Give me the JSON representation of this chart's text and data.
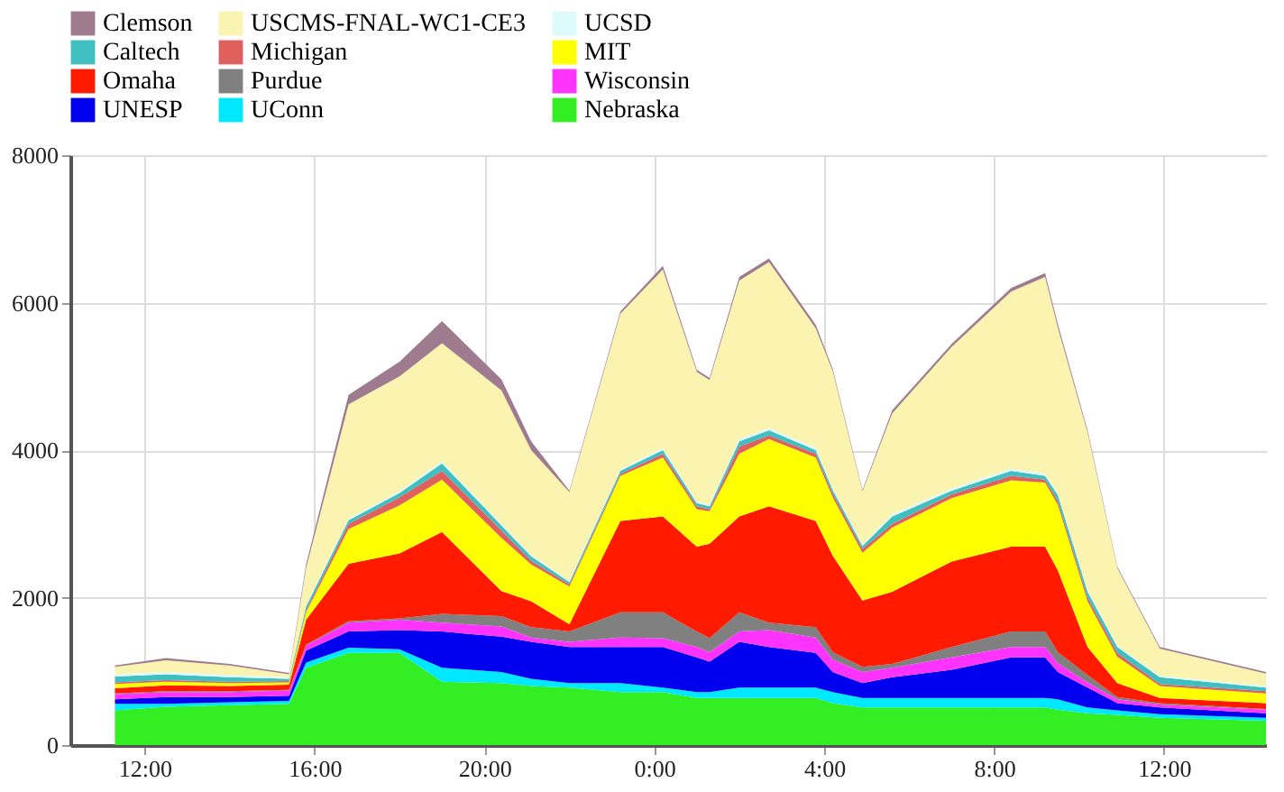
{
  "chart_data": {
    "type": "area",
    "stacked": true,
    "grid": true,
    "legend": "top",
    "x": [
      "2000-01-01T11:18",
      "2000-01-01T12:30",
      "2000-01-01T14:00",
      "2000-01-01T15:24",
      "2000-01-01T15:48",
      "2000-01-01T16:48",
      "2000-01-01T18:00",
      "2000-01-01T19:00",
      "2000-01-01T20:24",
      "2000-01-01T21:06",
      "2000-01-01T22:00",
      "2000-01-01T23:12",
      "2000-01-02T00:12",
      "2000-01-02T01:00",
      "2000-01-02T01:18",
      "2000-01-02T02:00",
      "2000-01-02T02:42",
      "2000-01-02T03:48",
      "2000-01-02T04:12",
      "2000-01-02T04:54",
      "2000-01-02T05:36",
      "2000-01-02T07:00",
      "2000-01-02T08:24",
      "2000-01-02T09:12",
      "2000-01-02T09:30",
      "2000-01-02T10:12",
      "2000-01-02T10:54",
      "2000-01-02T11:54",
      "2000-01-02T14:24"
    ],
    "xlim": [
      "2000-01-01T10:15",
      "2000-01-02T14:24"
    ],
    "xticks": [
      {
        "value": "2000-01-01T12:00",
        "label": "12:00"
      },
      {
        "value": "2000-01-01T16:00",
        "label": "16:00"
      },
      {
        "value": "2000-01-01T20:00",
        "label": "20:00"
      },
      {
        "value": "2000-01-02T00:00",
        "label": "0:00"
      },
      {
        "value": "2000-01-02T04:00",
        "label": "4:00"
      },
      {
        "value": "2000-01-02T08:00",
        "label": "8:00"
      },
      {
        "value": "2000-01-02T12:00",
        "label": "12:00"
      }
    ],
    "ylim": [
      0,
      8000
    ],
    "yticks": [
      0,
      2000,
      4000,
      6000,
      8000
    ],
    "series": [
      {
        "name": "Nebraska",
        "color": "#33ee22",
        "values": [
          470,
          520,
          540,
          560,
          1050,
          1250,
          1250,
          860,
          840,
          800,
          780,
          720,
          720,
          640,
          640,
          640,
          640,
          640,
          570,
          510,
          510,
          510,
          510,
          510,
          480,
          430,
          410,
          370,
          330
        ]
      },
      {
        "name": "UConn",
        "color": "#00e8ff",
        "values": [
          90,
          40,
          40,
          40,
          70,
          70,
          50,
          190,
          150,
          100,
          60,
          120,
          60,
          80,
          80,
          140,
          140,
          140,
          150,
          130,
          130,
          130,
          130,
          130,
          140,
          80,
          60,
          50,
          40
        ]
      },
      {
        "name": "UNESP",
        "color": "#0000ee",
        "values": [
          60,
          90,
          70,
          70,
          160,
          220,
          260,
          490,
          480,
          500,
          490,
          490,
          550,
          470,
          410,
          620,
          550,
          470,
          270,
          200,
          280,
          380,
          550,
          550,
          370,
          270,
          100,
          90,
          60
        ]
      },
      {
        "name": "Wisconsin",
        "color": "#ff33ff",
        "values": [
          70,
          70,
          70,
          70,
          70,
          120,
          140,
          120,
          140,
          60,
          70,
          130,
          120,
          140,
          130,
          140,
          230,
          210,
          170,
          150,
          130,
          170,
          140,
          140,
          120,
          70,
          50,
          40,
          50
        ]
      },
      {
        "name": "Purdue",
        "color": "#808080",
        "values": [
          10,
          10,
          10,
          10,
          10,
          20,
          20,
          120,
          140,
          140,
          140,
          340,
          350,
          210,
          190,
          260,
          100,
          140,
          100,
          70,
          50,
          140,
          210,
          210,
          150,
          100,
          30,
          20,
          10
        ]
      },
      {
        "name": "Omaha",
        "color": "#ff1a00",
        "values": [
          70,
          80,
          70,
          70,
          340,
          780,
          880,
          1110,
          340,
          350,
          100,
          1240,
          1300,
          1150,
          1280,
          1300,
          1580,
          1440,
          1310,
          900,
          980,
          1160,
          1150,
          1150,
          1110,
          380,
          190,
          70,
          80
        ]
      },
      {
        "name": "MIT",
        "color": "#ffff00",
        "values": [
          60,
          50,
          40,
          30,
          100,
          470,
          650,
          710,
          720,
          500,
          510,
          610,
          800,
          510,
          440,
          850,
          910,
          860,
          790,
          650,
          870,
          860,
          900,
          870,
          890,
          620,
          360,
          160,
          130
        ]
      },
      {
        "name": "Michigan",
        "color": "#e06060",
        "values": [
          20,
          20,
          20,
          20,
          30,
          70,
          110,
          120,
          100,
          50,
          30,
          30,
          50,
          40,
          30,
          100,
          50,
          50,
          50,
          50,
          50,
          50,
          60,
          40,
          50,
          50,
          50,
          30,
          30
        ]
      },
      {
        "name": "Caltech",
        "color": "#3fbfbf",
        "values": [
          80,
          80,
          60,
          30,
          50,
          50,
          60,
          100,
          70,
          60,
          30,
          40,
          50,
          40,
          40,
          70,
          70,
          50,
          50,
          40,
          100,
          50,
          70,
          50,
          80,
          80,
          80,
          90,
          50
        ]
      },
      {
        "name": "UCSD",
        "color": "#dffafa",
        "values": [
          30,
          30,
          30,
          20,
          20,
          20,
          20,
          30,
          20,
          20,
          20,
          20,
          30,
          20,
          20,
          30,
          30,
          30,
          20,
          20,
          30,
          30,
          30,
          30,
          20,
          20,
          20,
          20,
          20
        ]
      },
      {
        "name": "USCMS-FNAL-WC1-CE3",
        "color": "#fbf3b0",
        "values": [
          100,
          160,
          130,
          40,
          500,
          1550,
          1560,
          1600,
          1810,
          1420,
          1200,
          2110,
          2420,
          1760,
          1690,
          2150,
          2250,
          1620,
          1590,
          720,
          1370,
          1920,
          2400,
          2670,
          2250,
          2140,
          1050,
          370,
          170
        ]
      },
      {
        "name": "Clemson",
        "color": "#9e7b8e",
        "values": [
          20,
          30,
          20,
          20,
          50,
          130,
          200,
          300,
          150,
          120,
          20,
          30,
          50,
          30,
          30,
          50,
          50,
          50,
          30,
          20,
          40,
          40,
          50,
          50,
          50,
          30,
          20,
          20,
          20
        ]
      }
    ]
  }
}
